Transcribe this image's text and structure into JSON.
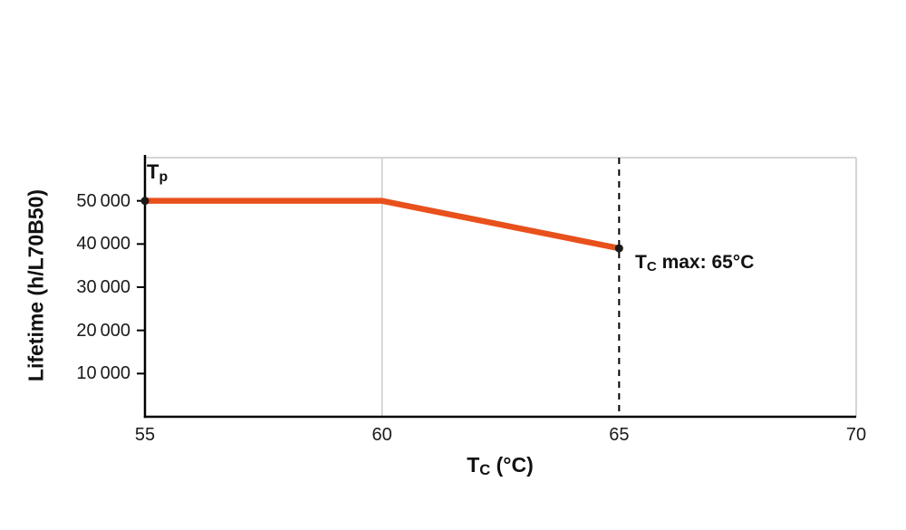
{
  "chart_data": {
    "type": "line",
    "title": "",
    "ylabel": "Lifetime (h/L70B50)",
    "xlabel_parts": {
      "pre": "T",
      "sub": "C",
      "post": " (°C)"
    },
    "xlim": [
      55,
      70
    ],
    "ylim": [
      0,
      60000
    ],
    "x_ticks": [
      55,
      60,
      65,
      70
    ],
    "x_tick_labels": [
      "55",
      "60",
      "65",
      "70"
    ],
    "y_ticks": [
      10000,
      20000,
      30000,
      40000,
      50000
    ],
    "y_tick_labels": [
      "10 000",
      "20 000",
      "30 000",
      "40 000",
      "50 000"
    ],
    "series": [
      {
        "name": "lifetime-curve",
        "color": "#e8511c",
        "points": [
          {
            "x": 55,
            "y": 50000
          },
          {
            "x": 60,
            "y": 50000
          },
          {
            "x": 65,
            "y": 39000
          }
        ]
      }
    ],
    "markers": [
      {
        "x": 55,
        "y": 50000,
        "label_parts": {
          "pre": "T",
          "sub": "p",
          "post": ""
        }
      },
      {
        "x": 65,
        "y": 39000,
        "label_parts": {
          "pre": "T",
          "sub": "C",
          "post": " max: 65°C"
        }
      }
    ],
    "reference_lines": [
      {
        "axis": "x",
        "value": 65,
        "style": "dashed",
        "color": "#000000"
      }
    ],
    "gridlines": {
      "x_values": [
        60,
        70
      ],
      "top_border": true
    },
    "colors": {
      "line": "#e8511c",
      "marker": "#1a1a1a",
      "axis": "#000000",
      "grid": "#c9c9c9"
    },
    "legend": "none"
  }
}
